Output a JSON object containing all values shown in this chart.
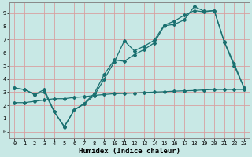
{
  "xlabel": "Humidex (Indice chaleur)",
  "bg_color": "#c8e8e5",
  "line_color": "#1a7070",
  "grid_color": "#e0b8b8",
  "xlim": [
    -0.5,
    23.5
  ],
  "ylim": [
    -0.5,
    9.8
  ],
  "xticks": [
    0,
    1,
    2,
    3,
    4,
    5,
    6,
    7,
    8,
    9,
    10,
    11,
    12,
    13,
    14,
    15,
    16,
    17,
    18,
    19,
    20,
    21,
    22,
    23
  ],
  "yticks": [
    0,
    1,
    2,
    3,
    4,
    5,
    6,
    7,
    8,
    9
  ],
  "line1_x": [
    0,
    1,
    2,
    3,
    4,
    5,
    6,
    7,
    8,
    9,
    10,
    11,
    12,
    13,
    14,
    15,
    16,
    17,
    18,
    19,
    20,
    21,
    22,
    23
  ],
  "line1_y": [
    3.3,
    3.2,
    2.8,
    3.2,
    1.5,
    0.4,
    1.65,
    2.15,
    2.9,
    4.35,
    5.45,
    5.35,
    5.85,
    6.25,
    6.75,
    8.05,
    8.15,
    8.5,
    9.5,
    9.15,
    9.2,
    6.8,
    5.0,
    3.3
  ],
  "line2_x": [
    0,
    1,
    2,
    3,
    4,
    5,
    6,
    7,
    8,
    9,
    10,
    11,
    12,
    13,
    14,
    15,
    16,
    17,
    18,
    19,
    20,
    21,
    22,
    23
  ],
  "line2_y": [
    3.3,
    3.2,
    2.85,
    3.0,
    1.5,
    0.35,
    1.65,
    2.1,
    2.75,
    4.0,
    5.3,
    6.9,
    6.15,
    6.5,
    6.95,
    8.1,
    8.4,
    8.85,
    9.2,
    9.1,
    9.2,
    6.85,
    5.15,
    3.3
  ],
  "line3_x": [
    0,
    1,
    2,
    3,
    4,
    5,
    6,
    7,
    8,
    9,
    10,
    11,
    12,
    13,
    14,
    15,
    16,
    17,
    18,
    19,
    20,
    21,
    22,
    23
  ],
  "line3_y": [
    2.2,
    2.2,
    2.3,
    2.4,
    2.5,
    2.5,
    2.6,
    2.65,
    2.75,
    2.82,
    2.88,
    2.9,
    2.93,
    2.97,
    3.0,
    3.03,
    3.07,
    3.1,
    3.12,
    3.17,
    3.2,
    3.2,
    3.2,
    3.2
  ],
  "grid_major_color": "#d8a0a0",
  "spine_color": "#888888",
  "tick_fontsize": 5.0,
  "xlabel_fontsize": 6.5
}
